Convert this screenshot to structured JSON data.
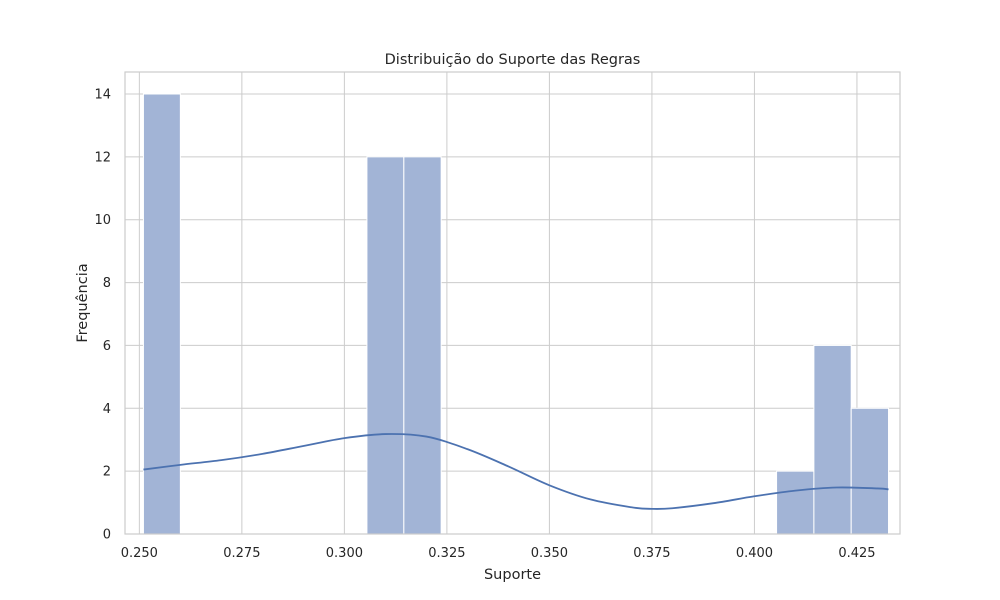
{
  "chart_data": {
    "type": "bar",
    "subtype": "histogram_with_kde",
    "title": "Distribuição do Suporte das Regras",
    "xlabel": "Suporte",
    "ylabel": "Frequência",
    "xlim": [
      0.2465,
      0.4355
    ],
    "ylim": [
      0,
      14.7
    ],
    "xticks": [
      0.25,
      0.275,
      0.3,
      0.325,
      0.35,
      0.375,
      0.4,
      0.425
    ],
    "xtick_labels": [
      "0.250",
      "0.275",
      "0.300",
      "0.325",
      "0.350",
      "0.375",
      "0.400",
      "0.425"
    ],
    "yticks": [
      0,
      2,
      4,
      6,
      8,
      10,
      12,
      14
    ],
    "ytick_labels": [
      "0",
      "2",
      "4",
      "6",
      "8",
      "10",
      "12",
      "14"
    ],
    "grid": true,
    "bar_color": "#a2b4d6",
    "line_color": "#4c72b0",
    "bins": [
      {
        "x0": 0.251,
        "x1": 0.26,
        "count": 14
      },
      {
        "x0": 0.3055,
        "x1": 0.3145,
        "count": 12
      },
      {
        "x0": 0.3145,
        "x1": 0.3236,
        "count": 12
      },
      {
        "x0": 0.4054,
        "x1": 0.4145,
        "count": 2
      },
      {
        "x0": 0.4145,
        "x1": 0.4236,
        "count": 6
      },
      {
        "x0": 0.4236,
        "x1": 0.4327,
        "count": 4
      }
    ],
    "kde": {
      "x": [
        0.251,
        0.26,
        0.27,
        0.28,
        0.29,
        0.3,
        0.31,
        0.32,
        0.33,
        0.34,
        0.35,
        0.36,
        0.37,
        0.375,
        0.38,
        0.39,
        0.4,
        0.41,
        0.42,
        0.43,
        0.4327
      ],
      "y": [
        2.05,
        2.2,
        2.35,
        2.55,
        2.8,
        3.05,
        3.18,
        3.1,
        2.7,
        2.15,
        1.55,
        1.1,
        0.85,
        0.8,
        0.82,
        0.98,
        1.2,
        1.38,
        1.48,
        1.45,
        1.42
      ]
    }
  }
}
